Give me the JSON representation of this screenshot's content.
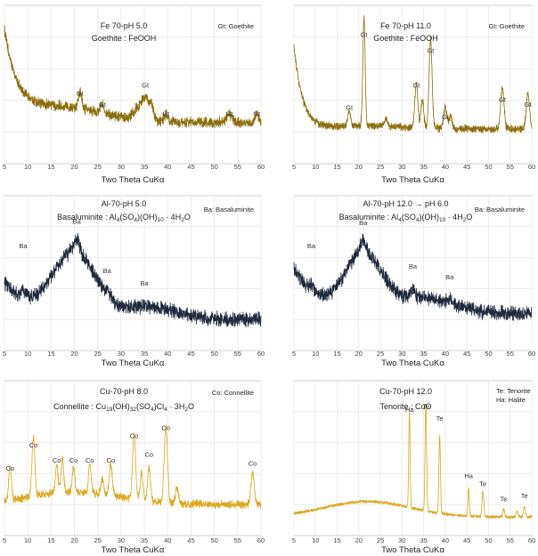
{
  "figure": {
    "x_axis_label": "Two Theta CuKα",
    "x_ticks": [
      5,
      10,
      15,
      20,
      25,
      30,
      35,
      40,
      45,
      50,
      55,
      60
    ],
    "colors": {
      "gold_dark": "#8a6d0b",
      "navy": "#1f2a3c",
      "gold_light": "#d9a81c"
    }
  },
  "chart_data": [
    {
      "type": "line",
      "title": "Fe 70-pH 5.0",
      "subtitle": "Goethite : FeOOH",
      "legend": "Gt: Goethite",
      "xlabel": "Two Theta CuKα",
      "xlim": [
        5,
        60
      ],
      "grid": true,
      "color": "#8a6d0b",
      "peaks": [
        {
          "x": 21.2,
          "label": "Gt"
        },
        {
          "x": 26.0,
          "label": "Gt"
        },
        {
          "x": 35.2,
          "label": "Gt"
        },
        {
          "x": 39.6,
          "label": "Gt"
        },
        {
          "x": 53.2,
          "label": "Gt"
        },
        {
          "x": 59.1,
          "label": "Gt"
        }
      ]
    },
    {
      "type": "line",
      "title": "Fe 70-pH 11.0",
      "subtitle": "Goethite : FeOOH",
      "legend": "Gt: Goethite",
      "xlabel": "Two Theta CuKα",
      "xlim": [
        5,
        60
      ],
      "grid": true,
      "color": "#8a6d0b",
      "peaks": [
        {
          "x": 17.8,
          "label": "Gt"
        },
        {
          "x": 21.2,
          "label": "Gt"
        },
        {
          "x": 33.3,
          "label": "Gt"
        },
        {
          "x": 36.6,
          "label": "Gt"
        },
        {
          "x": 40.0,
          "label": "Gt"
        },
        {
          "x": 53.2,
          "label": "Gt"
        },
        {
          "x": 59.1,
          "label": "Gt"
        }
      ]
    },
    {
      "type": "line",
      "title": "Al-70-pH 5.0",
      "subtitle": {
        "pre": "Basaluminite : Al",
        "s1": "4",
        "m1": "(SO",
        "s2": "4",
        "m2": ")(OH)",
        "s3": "10",
        "post": " · 4H",
        "s4": "2",
        "end": "O"
      },
      "legend": "Ba: Basaluminite",
      "xlabel": "Two Theta CuKα",
      "xlim": [
        5,
        60
      ],
      "grid": true,
      "color": "#1f2a3c",
      "peaks": [
        {
          "x": 9.0,
          "label": "Ba"
        },
        {
          "x": 20.5,
          "label": "Ba"
        },
        {
          "x": 27.0,
          "label": "Ba"
        },
        {
          "x": 35.0,
          "label": "Ba"
        }
      ]
    },
    {
      "type": "line",
      "title": "Al-70-pH 12.0 → pH 6.0",
      "subtitle": {
        "pre": "Basaluminite : Al",
        "s1": "4",
        "m1": "(SO",
        "s2": "4",
        "m2": ")(OH)",
        "s3": "10",
        "post": " · 4H",
        "s4": "2",
        "end": "O"
      },
      "legend": "Ba: Basaluminite",
      "xlabel": "Two Theta CuKα",
      "xlim": [
        5,
        60
      ],
      "grid": true,
      "color": "#1f2a3c",
      "peaks": [
        {
          "x": 9.0,
          "label": "Ba"
        },
        {
          "x": 21.0,
          "label": "Ba"
        },
        {
          "x": 32.5,
          "label": "Ba"
        },
        {
          "x": 41.0,
          "label": "Ba"
        }
      ]
    },
    {
      "type": "line",
      "title": "Cu-70-pH 8.0",
      "subtitle": {
        "pre": "Connellite : Cu",
        "s1": "19",
        "m1": "(OH)",
        "s2": "32",
        "m2": "(SO",
        "s3": "4",
        "post": ")Cl",
        "s4": "4",
        "end": " · 3H",
        "s5": "2",
        "end2": "O"
      },
      "legend": "Co: Connellite",
      "xlabel": "Two Theta CuKα",
      "xlim": [
        5,
        60
      ],
      "grid": true,
      "color": "#d9a81c",
      "peaks": [
        {
          "x": 6.2,
          "label": "Co"
        },
        {
          "x": 11.2,
          "label": "Co"
        },
        {
          "x": 16.2,
          "label": "Co"
        },
        {
          "x": 19.8,
          "label": "Co"
        },
        {
          "x": 23.3,
          "label": "Co"
        },
        {
          "x": 27.8,
          "label": "Co"
        },
        {
          "x": 32.8,
          "label": "Co"
        },
        {
          "x": 36.0,
          "label": "Co"
        },
        {
          "x": 39.6,
          "label": "Co"
        },
        {
          "x": 58.2,
          "label": "Co"
        }
      ]
    },
    {
      "type": "line",
      "title": "Cu-70-pH 12.0",
      "subtitle": "Tenorite : CuO",
      "legend_lines": [
        "Te: Tenorite",
        "Ha: Halite"
      ],
      "xlabel": "Two Theta CuKα",
      "xlim": [
        5,
        60
      ],
      "grid": true,
      "color": "#d9a81c",
      "peaks": [
        {
          "x": 31.7,
          "label": "Ha"
        },
        {
          "x": 35.5,
          "label": "Te"
        },
        {
          "x": 38.7,
          "label": "Te"
        },
        {
          "x": 45.4,
          "label": "Ha"
        },
        {
          "x": 48.7,
          "label": "Te"
        },
        {
          "x": 53.5,
          "label": "Te"
        },
        {
          "x": 58.3,
          "label": "Te"
        }
      ]
    }
  ]
}
